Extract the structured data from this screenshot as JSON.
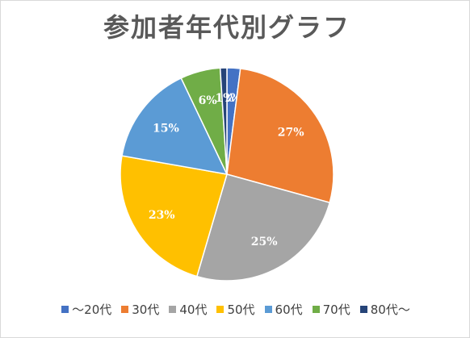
{
  "chart_data": {
    "type": "pie",
    "title": "参加者年代別グラフ",
    "categories": [
      "～20代",
      "30代",
      "40代",
      "50代",
      "60代",
      "70代",
      "80代～"
    ],
    "values": [
      2,
      27,
      25,
      23,
      15,
      6,
      1
    ],
    "labels": [
      "2%",
      "27%",
      "25%",
      "23%",
      "15%",
      "6%",
      "1%"
    ],
    "colors": [
      "#4472c4",
      "#ed7d31",
      "#a5a5a5",
      "#ffc000",
      "#5b9bd5",
      "#70ad47",
      "#264478"
    ],
    "legend_position": "bottom"
  }
}
